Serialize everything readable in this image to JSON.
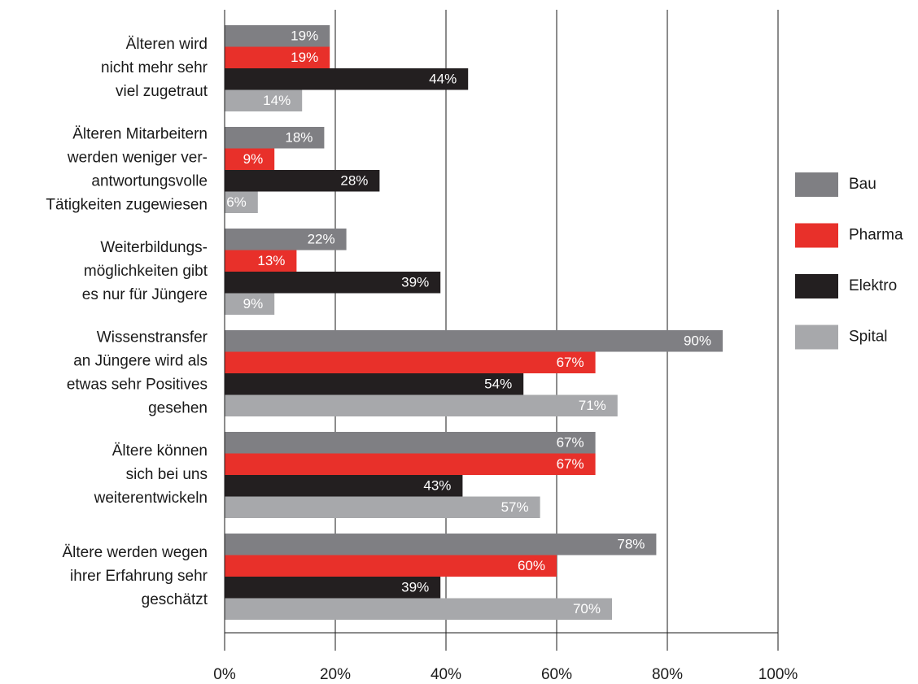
{
  "chart_data": {
    "type": "bar",
    "orientation": "horizontal",
    "categories": [
      [
        "Älteren wird",
        "nicht mehr sehr",
        "viel zugetraut"
      ],
      [
        "Älteren Mitarbeitern",
        "werden weniger ver-",
        "antwortungsvolle",
        "Tätigkeiten zugewiesen"
      ],
      [
        "Weiterbildungs-",
        "möglichkeiten gibt",
        "es nur für Jüngere"
      ],
      [
        "Wissenstransfer",
        "an Jüngere wird als",
        "etwas sehr Positives",
        "gesehen"
      ],
      [
        "Ältere können",
        "sich bei uns",
        "weiterentwickeln"
      ],
      [
        "Ältere werden wegen",
        "ihrer Erfahrung sehr",
        "geschätzt"
      ]
    ],
    "series": [
      {
        "name": "Bau",
        "color": "#7f7f83",
        "values": [
          19,
          18,
          22,
          90,
          67,
          78
        ],
        "value_labels": [
          "19%",
          "18%",
          "22%",
          "90%",
          "67%",
          "78%"
        ]
      },
      {
        "name": "Pharma",
        "color": "#e8302a",
        "values": [
          19,
          9,
          13,
          67,
          67,
          60
        ],
        "value_labels": [
          "19%",
          "9%",
          "13%",
          "67%",
          "67%",
          "60%"
        ]
      },
      {
        "name": "Elektro",
        "color": "#231f20",
        "values": [
          44,
          28,
          39,
          54,
          43,
          39
        ],
        "value_labels": [
          "44%",
          "28%",
          "39%",
          "54%",
          "43%",
          "39%"
        ]
      },
      {
        "name": "Spital",
        "color": "#a7a8ab",
        "values": [
          14,
          6,
          9,
          71,
          57,
          70
        ],
        "value_labels": [
          "14%",
          "6%",
          "9%",
          "71%",
          "57%",
          "70%"
        ]
      }
    ],
    "xlim": [
      0,
      100
    ],
    "xticks": [
      {
        "value": 0,
        "label": "0%"
      },
      {
        "value": 20,
        "label": "20%"
      },
      {
        "value": 40,
        "label": "40%"
      },
      {
        "value": 60,
        "label": "60%"
      },
      {
        "value": 80,
        "label": "80%"
      },
      {
        "value": 100,
        "label": "100%"
      }
    ],
    "grid": true,
    "legend": "right"
  }
}
